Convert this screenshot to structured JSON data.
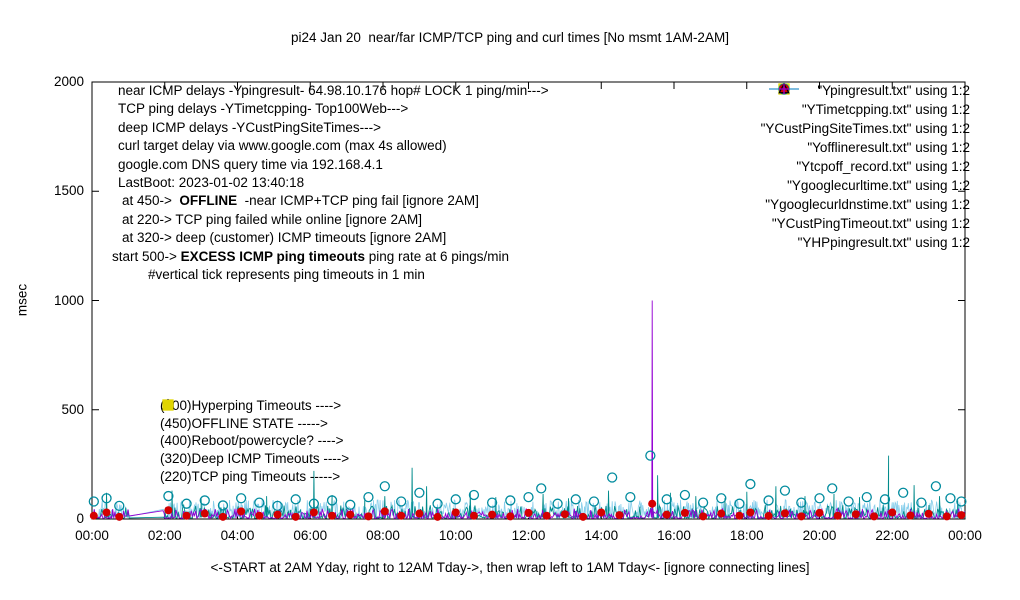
{
  "title": "pi24 Jan 20  near/far ICMP/TCP ping and curl times [No msmt 1AM-2AM]",
  "ylabel": "msec",
  "xlabel": "<-START at 2AM Yday, right to 12AM Tday->, then wrap left to 1AM Tday<- [ignore connecting lines]",
  "annotations": {
    "lines": [
      {
        "segments": [
          {
            "t": "near ICMP delays -Ypingresult- 64.98.10.176 hop# LOCK 1 ping/min--->"
          }
        ]
      },
      {
        "segments": [
          {
            "t": "TCP ping delays -YTimetcpping- Top100Web--->"
          }
        ]
      },
      {
        "segments": [
          {
            "t": "deep ICMP delays -YCustPingSiteTimes--->"
          }
        ]
      },
      {
        "segments": [
          {
            "t": "curl target delay via www.google.com (max 4s allowed)"
          }
        ]
      },
      {
        "segments": [
          {
            "t": "google.com DNS query time via 192.168.4.1"
          }
        ]
      },
      {
        "segments": [
          {
            "t": "LastBoot: 2023-01-02 13:40:18"
          }
        ]
      },
      {
        "indent": 4,
        "segments": [
          {
            "t": "at 450->  "
          },
          {
            "t": "OFFLINE",
            "b": true
          },
          {
            "t": "  -near ICMP+TCP ping fail [ignore 2AM]"
          }
        ]
      },
      {
        "indent": 4,
        "segments": [
          {
            "t": "at 220-> TCP ping failed while online [ignore 2AM]"
          }
        ]
      },
      {
        "indent": 4,
        "segments": [
          {
            "t": "at 320-> deep (customer) ICMP timeouts [ignore 2AM]"
          }
        ]
      },
      {
        "indent": -6,
        "segments": [
          {
            "t": "start 500-> "
          },
          {
            "t": "EXCESS ICMP ping timeouts",
            "b": true
          },
          {
            "t": " ping rate at 6 pings/min"
          }
        ]
      },
      {
        "indent": 30,
        "segments": [
          {
            "t": "#vertical tick represents ping timeouts in 1 min"
          }
        ]
      }
    ]
  },
  "marker_labels": [
    {
      "glyph": "plus",
      "color": "#9400d3",
      "text": "(500)Hyperping Timeouts ---->"
    },
    {
      "glyph": "open-square",
      "color": "#e0d500",
      "text": "(450)OFFLINE STATE ----->"
    },
    {
      "glyph": null,
      "color": null,
      "text": "(400)Reboot/powercycle? ---->"
    },
    {
      "glyph": "open-triangle",
      "color": "#000000",
      "text": "(320)Deep ICMP Timeouts ---->"
    },
    {
      "glyph": "filled-square",
      "color": "#e0d500",
      "text": "(220)TCP ping Timeouts ----->"
    }
  ],
  "legend": [
    {
      "label": "\"Ypingresult.txt\" using 1:2",
      "glyph": "line",
      "color": "#9400d3"
    },
    {
      "label": "\"YTimetcpping.txt\" using 1:2",
      "glyph": "line",
      "color": "#008b8b"
    },
    {
      "label": "\"YCustPingSiteTimes.txt\" using 1:2",
      "glyph": "line",
      "color": "#87ceeb"
    },
    {
      "label": "\"Yofflineresult.txt\" using 1:2",
      "glyph": "open-square",
      "color": "#e0d500"
    },
    {
      "label": "\"Ytcpoff_record.txt\" using 1:2",
      "glyph": "filled-square",
      "color": "#e8e800"
    },
    {
      "label": "\"Ygooglecurltime.txt\" using 1:2",
      "glyph": "open-circle",
      "color": "#008b9e"
    },
    {
      "label": "\"Ygooglecurldnstime.txt\" using 1:2",
      "glyph": "filled-circle",
      "color": "#d40000"
    },
    {
      "label": "\"YCustPingTimeout.txt\" using 1:2",
      "glyph": "open-triangle",
      "color": "#000000"
    },
    {
      "label": "\"YHPpingresult.txt\" using 1:2",
      "glyph": "plus",
      "color": "#9400d3"
    }
  ],
  "chart_data": {
    "type": "line",
    "xlim": [
      0,
      24
    ],
    "ylim": [
      0,
      2000
    ],
    "x_ticks": [
      "00:00",
      "02:00",
      "04:00",
      "06:00",
      "08:00",
      "10:00",
      "12:00",
      "14:00",
      "16:00",
      "18:00",
      "20:00",
      "22:00",
      "00:00"
    ],
    "y_ticks": [
      0,
      500,
      1000,
      1500,
      2000
    ],
    "gap_hours": [
      1.05,
      1.95
    ],
    "grid": false,
    "legend_position": "top-right-inside",
    "series": [
      {
        "name": "YCustPingSiteTimes",
        "type": "line",
        "color": "#87ceeb",
        "width": 0.8,
        "noise": {
          "seed": 29,
          "step": 0.02,
          "base": 3,
          "amp": 85,
          "pow": 1.6
        },
        "spikes": []
      },
      {
        "name": "YTimetcpping",
        "type": "line",
        "color": "#008b8b",
        "width": 0.9,
        "noise": {
          "seed": 13,
          "step": 0.03,
          "base": 4,
          "amp": 60,
          "pow": 2.6
        },
        "spikes": [
          [
            0.4,
            120
          ],
          [
            2.2,
            130
          ],
          [
            3.0,
            95
          ],
          [
            4.8,
            105
          ],
          [
            6.1,
            220
          ],
          [
            6.6,
            110
          ],
          [
            7.5,
            95
          ],
          [
            8.05,
            105
          ],
          [
            8.8,
            235
          ],
          [
            9.2,
            150
          ],
          [
            10.4,
            120
          ],
          [
            11.1,
            100
          ],
          [
            12.4,
            115
          ],
          [
            13.1,
            95
          ],
          [
            14.2,
            130
          ],
          [
            15.55,
            200
          ],
          [
            15.9,
            120
          ],
          [
            16.6,
            105
          ],
          [
            17.4,
            95
          ],
          [
            18.0,
            125
          ],
          [
            18.8,
            150
          ],
          [
            19.6,
            105
          ],
          [
            20.4,
            115
          ],
          [
            21.1,
            100
          ],
          [
            21.9,
            290
          ],
          [
            22.6,
            155
          ],
          [
            23.3,
            105
          ],
          [
            23.8,
            85
          ]
        ]
      },
      {
        "name": "Ypingresult",
        "type": "line",
        "color": "#9400d3",
        "width": 0.9,
        "noise": {
          "seed": 7,
          "step": 0.03,
          "base": 3,
          "amp": 45,
          "pow": 3.0
        },
        "spikes": [
          [
            15.4,
            1000
          ]
        ]
      },
      {
        "name": "Ygooglecurltime",
        "type": "points",
        "glyph": "open-circle",
        "color": "#008b9e",
        "size": 4.5,
        "points": [
          [
            0.05,
            80
          ],
          [
            0.4,
            95
          ],
          [
            0.75,
            60
          ],
          [
            2.1,
            105
          ],
          [
            2.6,
            70
          ],
          [
            3.1,
            85
          ],
          [
            3.6,
            62
          ],
          [
            4.1,
            95
          ],
          [
            4.6,
            75
          ],
          [
            5.1,
            60
          ],
          [
            5.6,
            90
          ],
          [
            6.1,
            70
          ],
          [
            6.6,
            85
          ],
          [
            7.1,
            65
          ],
          [
            7.6,
            100
          ],
          [
            8.05,
            150
          ],
          [
            8.5,
            80
          ],
          [
            9.0,
            120
          ],
          [
            9.5,
            70
          ],
          [
            10.0,
            90
          ],
          [
            10.5,
            110
          ],
          [
            11.0,
            75
          ],
          [
            11.5,
            85
          ],
          [
            12.0,
            100
          ],
          [
            12.35,
            140
          ],
          [
            12.8,
            70
          ],
          [
            13.3,
            90
          ],
          [
            13.8,
            80
          ],
          [
            14.3,
            190
          ],
          [
            14.8,
            100
          ],
          [
            15.35,
            290
          ],
          [
            15.8,
            90
          ],
          [
            16.3,
            110
          ],
          [
            16.8,
            75
          ],
          [
            17.3,
            95
          ],
          [
            17.8,
            70
          ],
          [
            18.1,
            160
          ],
          [
            18.6,
            85
          ],
          [
            19.05,
            130
          ],
          [
            19.5,
            75
          ],
          [
            20.0,
            95
          ],
          [
            20.35,
            140
          ],
          [
            20.8,
            80
          ],
          [
            21.3,
            100
          ],
          [
            21.8,
            90
          ],
          [
            22.3,
            120
          ],
          [
            22.8,
            75
          ],
          [
            23.2,
            150
          ],
          [
            23.6,
            95
          ],
          [
            23.9,
            80
          ]
        ]
      },
      {
        "name": "Ygooglecurldnstime",
        "type": "points",
        "glyph": "filled-circle",
        "color": "#d40000",
        "size": 4,
        "points": [
          [
            0.05,
            15
          ],
          [
            0.4,
            30
          ],
          [
            0.75,
            10
          ],
          [
            2.1,
            40
          ],
          [
            2.6,
            15
          ],
          [
            3.1,
            25
          ],
          [
            3.6,
            10
          ],
          [
            4.1,
            35
          ],
          [
            4.6,
            15
          ],
          [
            5.1,
            20
          ],
          [
            5.6,
            10
          ],
          [
            6.1,
            30
          ],
          [
            6.6,
            15
          ],
          [
            7.1,
            20
          ],
          [
            7.6,
            12
          ],
          [
            8.05,
            35
          ],
          [
            8.5,
            15
          ],
          [
            9.0,
            25
          ],
          [
            9.5,
            10
          ],
          [
            10.0,
            30
          ],
          [
            10.5,
            15
          ],
          [
            11.0,
            20
          ],
          [
            11.5,
            12
          ],
          [
            12.0,
            28
          ],
          [
            12.5,
            15
          ],
          [
            13.0,
            22
          ],
          [
            13.5,
            10
          ],
          [
            14.0,
            30
          ],
          [
            14.5,
            18
          ],
          [
            15.4,
            70
          ],
          [
            15.8,
            20
          ],
          [
            16.3,
            28
          ],
          [
            16.8,
            12
          ],
          [
            17.3,
            25
          ],
          [
            17.8,
            15
          ],
          [
            18.1,
            30
          ],
          [
            18.6,
            14
          ],
          [
            19.05,
            26
          ],
          [
            19.5,
            12
          ],
          [
            20.0,
            28
          ],
          [
            20.5,
            15
          ],
          [
            21.0,
            22
          ],
          [
            21.5,
            12
          ],
          [
            22.0,
            30
          ],
          [
            22.5,
            16
          ],
          [
            23.0,
            24
          ],
          [
            23.5,
            12
          ],
          [
            23.9,
            18
          ]
        ]
      }
    ]
  }
}
